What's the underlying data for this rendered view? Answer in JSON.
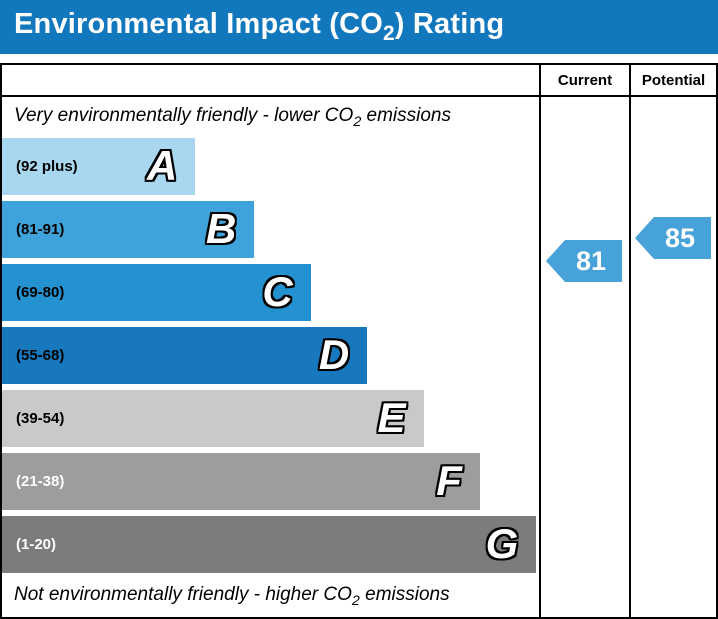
{
  "colors": {
    "title_bg": "#1278be",
    "title_text": "#ffffff",
    "border": "#000000"
  },
  "title": {
    "pre": "Environmental Impact (CO",
    "sub": "2",
    "post": ") Rating"
  },
  "table": {
    "header": {
      "current": "Current",
      "potential": "Potential"
    }
  },
  "notes": {
    "top": {
      "pre": "Very environmentally friendly - lower CO",
      "sub": "2",
      "post": " emissions"
    },
    "bottom": {
      "pre": "Not environmentally friendly - higher CO",
      "sub": "2",
      "post": " emissions"
    }
  },
  "chart_data": {
    "type": "bar",
    "title": "Environmental Impact (CO2) Rating",
    "top_note": "Very environmentally friendly - lower CO2 emissions",
    "bottom_note": "Not environmentally friendly - higher CO2 emissions",
    "columns": [
      "Current",
      "Potential"
    ],
    "bands": [
      {
        "letter": "A",
        "range": "(92 plus)",
        "min": 92,
        "max": 100,
        "color": "#a9d7f0",
        "label_color": "#000000",
        "width_pct": 36
      },
      {
        "letter": "B",
        "range": "(81-91)",
        "min": 81,
        "max": 91,
        "color": "#3fa3db",
        "label_color": "#000000",
        "width_pct": 47
      },
      {
        "letter": "C",
        "range": "(69-80)",
        "min": 69,
        "max": 80,
        "color": "#2491d0",
        "label_color": "#000000",
        "width_pct": 57.5
      },
      {
        "letter": "D",
        "range": "(55-68)",
        "min": 55,
        "max": 68,
        "color": "#1778bd",
        "label_color": "#000000",
        "width_pct": 68
      },
      {
        "letter": "E",
        "range": "(39-54)",
        "min": 39,
        "max": 54,
        "color": "#c9c9c9",
        "label_color": "#000000",
        "width_pct": 78.5
      },
      {
        "letter": "F",
        "range": "(21-38)",
        "min": 21,
        "max": 38,
        "color": "#9d9d9d",
        "label_color": "#ffffff",
        "width_pct": 89
      },
      {
        "letter": "G",
        "range": "(1-20)",
        "min": 1,
        "max": 20,
        "color": "#7c7c7c",
        "label_color": "#ffffff",
        "width_pct": 99.5
      }
    ],
    "current": {
      "label": "Current",
      "value": 81,
      "band": "B",
      "color": "#46a2d9"
    },
    "potential": {
      "label": "Potential",
      "value": 85,
      "band": "B",
      "color": "#46a2d9"
    }
  }
}
